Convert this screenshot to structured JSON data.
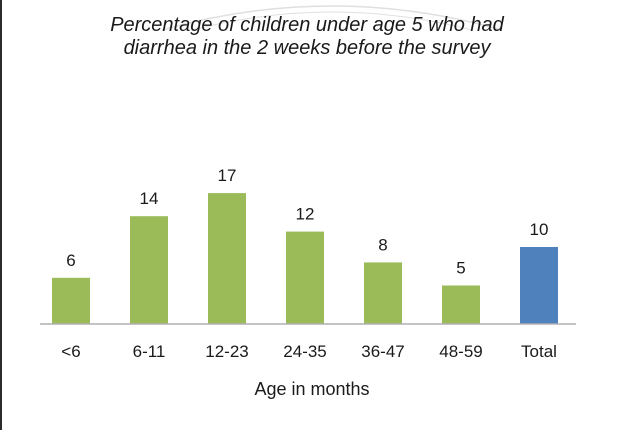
{
  "chart_data": {
    "type": "bar",
    "title": "Percentage of children under age 5 who had diarrhea in the 2 weeks before the survey",
    "xlabel": "Age in months",
    "ylabel": "",
    "ylim": [
      0,
      20
    ],
    "grid": false,
    "legend": "none",
    "categories": [
      "<6",
      "6-11",
      "12-23",
      "24-35",
      "36-47",
      "48-59",
      "Total"
    ],
    "values": [
      6,
      14,
      17,
      12,
      8,
      5,
      10
    ],
    "colors": [
      "#9bbb59",
      "#9bbb59",
      "#9bbb59",
      "#9bbb59",
      "#9bbb59",
      "#9bbb59",
      "#4f81bd"
    ]
  }
}
